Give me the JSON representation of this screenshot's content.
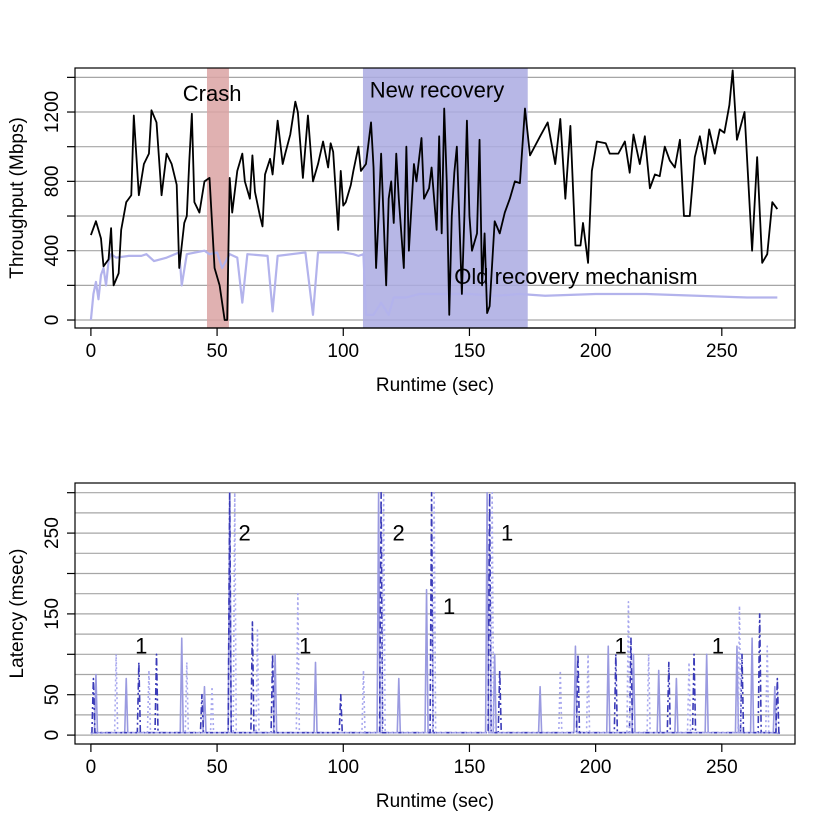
{
  "chart_data": [
    {
      "type": "line",
      "xlabel": "Runtime (sec)",
      "ylabel": "Throughput (Mbps)",
      "xlim": [
        -6.3,
        279
      ],
      "ylim": [
        -46,
        1454
      ],
      "xticks": [
        0,
        50,
        100,
        150,
        200,
        250
      ],
      "yticks": [
        0,
        400,
        800,
        1200
      ],
      "minor_yticks": [
        200,
        600,
        1000,
        1400
      ],
      "ygrid": [
        0,
        200,
        400,
        600,
        800,
        1000,
        1200,
        1400
      ],
      "spans": [
        {
          "x0": 46,
          "x1": 54.7,
          "color": "#dba3a3"
        },
        {
          "x0": 107.8,
          "x1": 173.1,
          "color": "#aaaae2"
        }
      ],
      "annotations": [
        {
          "text": "Crash",
          "x": 36.4,
          "y": 1298
        },
        {
          "text": "New recovery",
          "x": 110.5,
          "y": 1316
        },
        {
          "text": "Old recovery mechanism",
          "x": 144,
          "y": 242
        }
      ],
      "series": [
        {
          "color": "#b3b3ec",
          "dash": "none",
          "width": 2.2,
          "x": [
            0,
            1,
            2,
            3,
            4,
            5,
            6,
            7,
            8,
            10,
            15,
            20,
            22,
            25,
            30,
            35,
            36,
            38,
            45,
            47,
            50,
            52,
            55,
            58,
            60,
            62,
            70,
            72,
            74,
            85,
            88,
            90,
            100,
            104,
            106,
            108,
            109,
            112,
            115,
            118,
            120,
            125,
            130,
            140,
            150,
            160,
            170,
            180,
            200,
            220,
            240,
            260,
            272
          ],
          "values": [
            0,
            150,
            220,
            120,
            260,
            300,
            200,
            340,
            380,
            360,
            370,
            370,
            380,
            340,
            360,
            390,
            200,
            380,
            400,
            380,
            390,
            300,
            380,
            360,
            100,
            380,
            370,
            50,
            370,
            390,
            30,
            390,
            390,
            380,
            370,
            380,
            30,
            30,
            100,
            30,
            130,
            130,
            150,
            150,
            150,
            140,
            150,
            140,
            150,
            150,
            140,
            130,
            130
          ]
        },
        {
          "color": "#000000",
          "dash": "none",
          "width": 1.8,
          "x": [
            0,
            2,
            4,
            5,
            7,
            8,
            9,
            11,
            12,
            14,
            16,
            17,
            19,
            21,
            23,
            24,
            26,
            27,
            28,
            30,
            32,
            34,
            35,
            37,
            38,
            39,
            40,
            41,
            43,
            45,
            47,
            49,
            51,
            53,
            54,
            55,
            56,
            58,
            60,
            61,
            63,
            64,
            65,
            67,
            68,
            69,
            71,
            72,
            74,
            76,
            77,
            79,
            81,
            82,
            84,
            86,
            88,
            90,
            92,
            94,
            95,
            96,
            98,
            99,
            100,
            101,
            103,
            104,
            106,
            107,
            109,
            111,
            112,
            113,
            114,
            115,
            117,
            118,
            119,
            120,
            121,
            122,
            124,
            125,
            126,
            128,
            129,
            131,
            132,
            134,
            135,
            137,
            138,
            139,
            140,
            141,
            142,
            143,
            144,
            145,
            147,
            148,
            149,
            150,
            151,
            153,
            154,
            155,
            156,
            157,
            158,
            160,
            162,
            164,
            166,
            168,
            170,
            172,
            174,
            178,
            181,
            184,
            186,
            188,
            190,
            192,
            194,
            195,
            197,
            198.5,
            200.5,
            204,
            205.6,
            209,
            211.6,
            213.5,
            215,
            217.5,
            219.5,
            221.5,
            223.5,
            225.4,
            227.4,
            229.4,
            231.4,
            233.4,
            235,
            237.3,
            239.3,
            241.3,
            243.3,
            245,
            247.2,
            249.2,
            251,
            253,
            254.3,
            256,
            259,
            262,
            264,
            266,
            268,
            270,
            272
          ],
          "values": [
            490,
            570,
            470,
            310,
            350,
            530,
            200,
            270,
            520,
            680,
            720,
            1180,
            720,
            900,
            960,
            1210,
            1140,
            930,
            720,
            960,
            900,
            780,
            300,
            560,
            600,
            920,
            1190,
            680,
            620,
            800,
            820,
            300,
            200,
            0,
            0,
            820,
            620,
            860,
            960,
            800,
            700,
            950,
            740,
            600,
            540,
            840,
            930,
            840,
            1150,
            900,
            960,
            1070,
            1260,
            1200,
            820,
            1180,
            800,
            900,
            1030,
            880,
            1020,
            970,
            520,
            860,
            660,
            680,
            780,
            860,
            1000,
            860,
            900,
            1140,
            880,
            300,
            600,
            960,
            200,
            700,
            800,
            560,
            960,
            700,
            300,
            1000,
            400,
            900,
            800,
            1050,
            700,
            760,
            880,
            520,
            1060,
            500,
            1220,
            800,
            30,
            600,
            850,
            1000,
            150,
            600,
            1150,
            600,
            400,
            500,
            1040,
            200,
            500,
            40,
            80,
            570,
            500,
            620,
            700,
            800,
            790,
            1220,
            950,
            1060,
            1140,
            900,
            1160,
            700,
            1120,
            430,
            430,
            560,
            330,
            860,
            1030,
            1020,
            960,
            960,
            1030,
            850,
            1070,
            900,
            1060,
            760,
            840,
            830,
            1000,
            920,
            880,
            1040,
            600,
            600,
            940,
            1060,
            900,
            1100,
            960,
            1100,
            1080,
            1240,
            1440,
            1040,
            1200,
            400,
            940,
            330,
            380,
            680,
            640
          ]
        }
      ]
    },
    {
      "type": "line",
      "xlabel": "Runtime (sec)",
      "ylabel": "Latency (msec)",
      "xlim": [
        -6.3,
        279
      ],
      "ylim": [
        -11,
        312
      ],
      "xticks": [
        0,
        50,
        100,
        150,
        200,
        250
      ],
      "yticks": [
        0,
        50,
        150,
        250
      ],
      "minor_yticks": [
        100,
        200,
        300
      ],
      "ygrid": [
        0,
        25,
        50,
        75,
        100,
        125,
        150,
        175,
        200,
        225,
        250,
        275,
        300
      ],
      "spans": [],
      "annotations": [
        {
          "text": "1",
          "x": 17.5,
          "y": 108
        },
        {
          "text": "2",
          "x": 58.5,
          "y": 248
        },
        {
          "text": "1",
          "x": 82.5,
          "y": 108
        },
        {
          "text": "2",
          "x": 119.5,
          "y": 248
        },
        {
          "text": "1",
          "x": 139.5,
          "y": 157
        },
        {
          "text": "1",
          "x": 162.5,
          "y": 248
        },
        {
          "text": "1",
          "x": 207.5,
          "y": 108
        },
        {
          "text": "1",
          "x": 246,
          "y": 108
        }
      ],
      "series": [
        {
          "color": "#9a9ae0",
          "dash": "none",
          "width": 1.6,
          "x": [
            0,
            1.4,
            2,
            2.6,
            13.4,
            14,
            14.6,
            35.4,
            36,
            36.6,
            44.4,
            45,
            45.6,
            54.4,
            55,
            55.6,
            72.4,
            73,
            73.6,
            88.4,
            89,
            89.6,
            113.4,
            114,
            114.6,
            121.4,
            122,
            122.6,
            132.4,
            133,
            133.6,
            156.4,
            157,
            157.6,
            159.4,
            160,
            160.6,
            177.4,
            178,
            178.6,
            191.4,
            192,
            192.6,
            204.4,
            205,
            205.6,
            214.4,
            215,
            215.6,
            224.4,
            225,
            225.6,
            231.4,
            232,
            232.6,
            243.4,
            244,
            244.6,
            255.4,
            256,
            256.6,
            261.4,
            262,
            262.6,
            270.4,
            271,
            271.6,
            273
          ],
          "values": [
            2,
            3,
            75,
            3,
            3,
            70,
            3,
            3,
            120,
            3,
            3,
            60,
            3,
            3,
            300,
            3,
            3,
            100,
            3,
            3,
            90,
            3,
            3,
            300,
            3,
            3,
            70,
            3,
            3,
            180,
            3,
            3,
            300,
            3,
            3,
            100,
            3,
            3,
            60,
            3,
            3,
            110,
            3,
            3,
            110,
            3,
            3,
            100,
            3,
            3,
            80,
            3,
            3,
            70,
            3,
            3,
            100,
            3,
            3,
            110,
            3,
            3,
            120,
            3,
            3,
            60,
            3,
            2
          ]
        },
        {
          "color": "#3a3ab8",
          "dash": "7 3 2 3",
          "width": 1.6,
          "x": [
            0,
            0.4,
            1,
            1.6,
            18.4,
            19,
            19.6,
            25.4,
            26,
            26.6,
            43.4,
            44,
            44.6,
            54.4,
            55,
            55.6,
            63.4,
            64,
            64.6,
            71.4,
            72,
            72.6,
            98.4,
            99,
            99.6,
            114.4,
            115,
            115.6,
            134.4,
            135,
            135.6,
            157.4,
            158,
            158.6,
            161.4,
            162,
            162.6,
            192.4,
            193,
            193.6,
            207.4,
            208,
            208.6,
            213.4,
            214,
            214.6,
            228.4,
            229,
            229.6,
            238.4,
            239,
            239.6,
            257.4,
            258,
            258.6,
            264.4,
            265,
            265.6,
            271.4,
            272,
            272.6,
            273
          ],
          "values": [
            2,
            3,
            70,
            3,
            3,
            90,
            3,
            3,
            100,
            3,
            3,
            50,
            3,
            3,
            300,
            3,
            3,
            140,
            3,
            3,
            100,
            3,
            3,
            50,
            3,
            3,
            300,
            3,
            3,
            300,
            3,
            3,
            300,
            3,
            3,
            80,
            3,
            3,
            100,
            3,
            3,
            100,
            3,
            3,
            120,
            3,
            3,
            90,
            3,
            3,
            100,
            3,
            3,
            100,
            3,
            3,
            150,
            3,
            3,
            70,
            3,
            2
          ]
        },
        {
          "color": "#a8a8ee",
          "dash": "2 3",
          "width": 1.6,
          "x": [
            0,
            9.4,
            10,
            10.6,
            22.4,
            23,
            23.6,
            37.4,
            38,
            38.6,
            47.4,
            48,
            48.6,
            56.4,
            57,
            57.6,
            65.4,
            66,
            66.6,
            81.4,
            82,
            82.6,
            107.4,
            108,
            108.6,
            115.4,
            116,
            116.6,
            135.4,
            136,
            136.6,
            158.4,
            159,
            159.6,
            185.4,
            186,
            186.6,
            196.4,
            197,
            197.6,
            212.4,
            213,
            213.6,
            220.4,
            221,
            221.6,
            236.4,
            237,
            237.6,
            256.4,
            257,
            257.6,
            267.4,
            268,
            268.6,
            273
          ],
          "values": [
            2,
            3,
            100,
            3,
            3,
            80,
            3,
            3,
            90,
            3,
            3,
            60,
            3,
            3,
            300,
            3,
            3,
            130,
            3,
            3,
            175,
            3,
            3,
            80,
            3,
            3,
            300,
            3,
            3,
            300,
            3,
            3,
            300,
            3,
            3,
            80,
            3,
            3,
            100,
            3,
            3,
            165,
            3,
            3,
            100,
            3,
            3,
            90,
            3,
            3,
            160,
            3,
            3,
            110,
            3,
            2
          ]
        }
      ]
    }
  ]
}
